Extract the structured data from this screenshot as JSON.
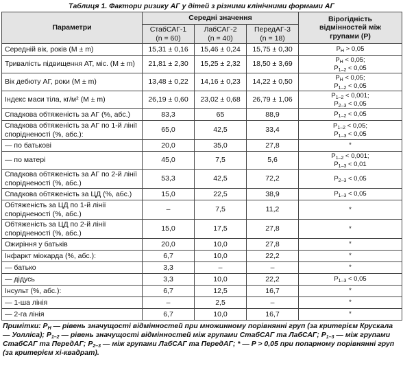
{
  "title": "Таблиця 1. Фактори ризику АГ у дітей з різними клінічними формами АГ",
  "table": {
    "header": {
      "parameters": "Параметри",
      "means": "Середні значення",
      "significance": "Вірогідність відмінностей між групами (Р)",
      "groups": [
        {
          "name": "СтабСАГ-1",
          "n": "(n = 60)"
        },
        {
          "name": "ЛабСАГ-2",
          "n": "(n = 40)"
        },
        {
          "name": "ПередАГ-3",
          "n": "(n = 18)"
        }
      ]
    },
    "rows": [
      {
        "param": "Середній вік, років (M ± m)",
        "values": [
          "15,31 ± 0,16",
          "15,46 ± 0,24",
          "15,75 ± 0,30"
        ],
        "p": [
          "PН > 0,05"
        ]
      },
      {
        "param": "Тривалість підвищення АТ, міс. (M ± m)",
        "values": [
          "21,81 ± 2,30",
          "15,25 ± 2,32",
          "18,50 ± 3,69"
        ],
        "p": [
          "PН < 0,05;",
          "P1–2 < 0,05"
        ]
      },
      {
        "param": "Вік дебюту АГ, роки (M ± m)",
        "values": [
          "13,48 ± 0,22",
          "14,16 ± 0,23",
          "14,22 ± 0,50"
        ],
        "p": [
          "PН < 0,05;",
          "P1–2 < 0,05"
        ]
      },
      {
        "param": "Індекс маси тіла, кг/м² (M ± m)",
        "values": [
          "26,19 ± 0,60",
          "23,02 ± 0,68",
          "26,79 ± 1,06"
        ],
        "p": [
          "P1–2 < 0,001;",
          "P2–3 < 0,05"
        ]
      },
      {
        "param": "Спадкова обтяженість за АГ (%, абс.)",
        "values": [
          "83,3",
          "65",
          "88,9"
        ],
        "p": [
          "P1–2 < 0,05"
        ]
      },
      {
        "param": "Спадкова обтяженість за АГ по 1-й лінії спорідненості (%, абс.):",
        "values": [
          "65,0",
          "42,5",
          "33,4"
        ],
        "p": [
          "P1–2 < 0,05;",
          "P1–3 < 0,05"
        ]
      },
      {
        "param": "— по батькові",
        "values": [
          "20,0",
          "35,0",
          "27,8"
        ],
        "p": [
          "*"
        ]
      },
      {
        "param": "— по матері",
        "values": [
          "45,0",
          "7,5",
          "5,6"
        ],
        "p": [
          "P1–2 < 0,001;",
          "P1–3 < 0,01"
        ]
      },
      {
        "param": "Спадкова обтяженість за АГ по 2-й лінії спорідненості (%, абс.)",
        "values": [
          "53,3",
          "42,5",
          "72,2"
        ],
        "p": [
          "P2–3 < 0,05"
        ]
      },
      {
        "param": "Спадкова обтяженість за ЦД (%, абс.)",
        "values": [
          "15,0",
          "22,5",
          "38,9"
        ],
        "p": [
          "P1–3 < 0,05"
        ]
      },
      {
        "param": "Обтяженість за ЦД по 1-й лінії спорідненості (%, абс.)",
        "values": [
          "–",
          "7,5",
          "11,2"
        ],
        "p": [
          "*"
        ]
      },
      {
        "param": "Обтяженість за ЦД по 2-й лінії спорідненості (%, абс.)",
        "values": [
          "15,0",
          "17,5",
          "27,8"
        ],
        "p": [
          "*"
        ]
      },
      {
        "param": "Ожиріння у батьків",
        "values": [
          "20,0",
          "10,0",
          "27,8"
        ],
        "p": [
          "*"
        ]
      },
      {
        "param": "Інфаркт міокарда (%, абс.):",
        "values": [
          "6,7",
          "10,0",
          "22,2"
        ],
        "p": [
          "*"
        ]
      },
      {
        "param": "— батько",
        "values": [
          "3,3",
          "–",
          "–"
        ],
        "p": [
          "*"
        ]
      },
      {
        "param": "— дідусь",
        "values": [
          "3,3",
          "10,0",
          "22,2"
        ],
        "p": [
          "P1–3 < 0,05"
        ]
      },
      {
        "param": "Інсульт (%, абс.):",
        "values": [
          "6,7",
          "12,5",
          "16,7"
        ],
        "p": [
          "*"
        ]
      },
      {
        "param": "— 1-ша лінія",
        "values": [
          "–",
          "2,5",
          "–"
        ],
        "p": [
          "*"
        ]
      },
      {
        "param": "— 2-га лінія",
        "values": [
          "6,7",
          "10,0",
          "16,7"
        ],
        "p": [
          "*"
        ]
      }
    ]
  },
  "footnote": "Примітки: PН — рівень значущості відмінностей при множинному порівнянні груп (за критерієм Крускала — Уолліса); P1–2 — рівень значущості відмінностей між групами СтабСАГ та ЛабСАГ; P1–3 — між групами СтабСАГ та ПередАГ; P2–3 — між групами ЛабСАГ та ПередАГ; * — P > 0,05 при попарному порівнянні груп (за критерієм хі-квадрат)."
}
